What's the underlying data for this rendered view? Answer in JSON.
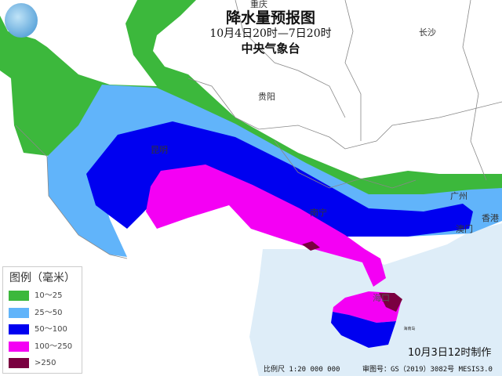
{
  "header": {
    "title": "降水量预报图",
    "period": "10月4日20时—7日20时",
    "issuer": "中央气象台"
  },
  "cities": [
    {
      "name": "重庆"
    },
    {
      "name": "长沙"
    },
    {
      "name": "贵阳"
    },
    {
      "name": "昆明"
    },
    {
      "name": "南宁"
    },
    {
      "name": "广州"
    },
    {
      "name": "澳门"
    },
    {
      "name": "香港"
    },
    {
      "name": "海口"
    },
    {
      "name": "海南岛"
    }
  ],
  "legend": {
    "title": "图例（毫米）",
    "items": [
      {
        "label": "10～25",
        "color": "#3cb83c"
      },
      {
        "label": "25～50",
        "color": "#61b4fa"
      },
      {
        "label": "50～100",
        "color": "#0000f0"
      },
      {
        "label": "100～250",
        "color": "#f400f4"
      },
      {
        "label": ">250",
        "color": "#7a0040"
      }
    ]
  },
  "footer": {
    "made_time": "10月3日12时制作",
    "scale": "比例尺 1:20 000 000",
    "approval": "审图号：GS（2019）3082号 MESIS3.0"
  },
  "colors": {
    "sea": "#deedf8",
    "land": "#ffffff",
    "border": "#888888"
  }
}
